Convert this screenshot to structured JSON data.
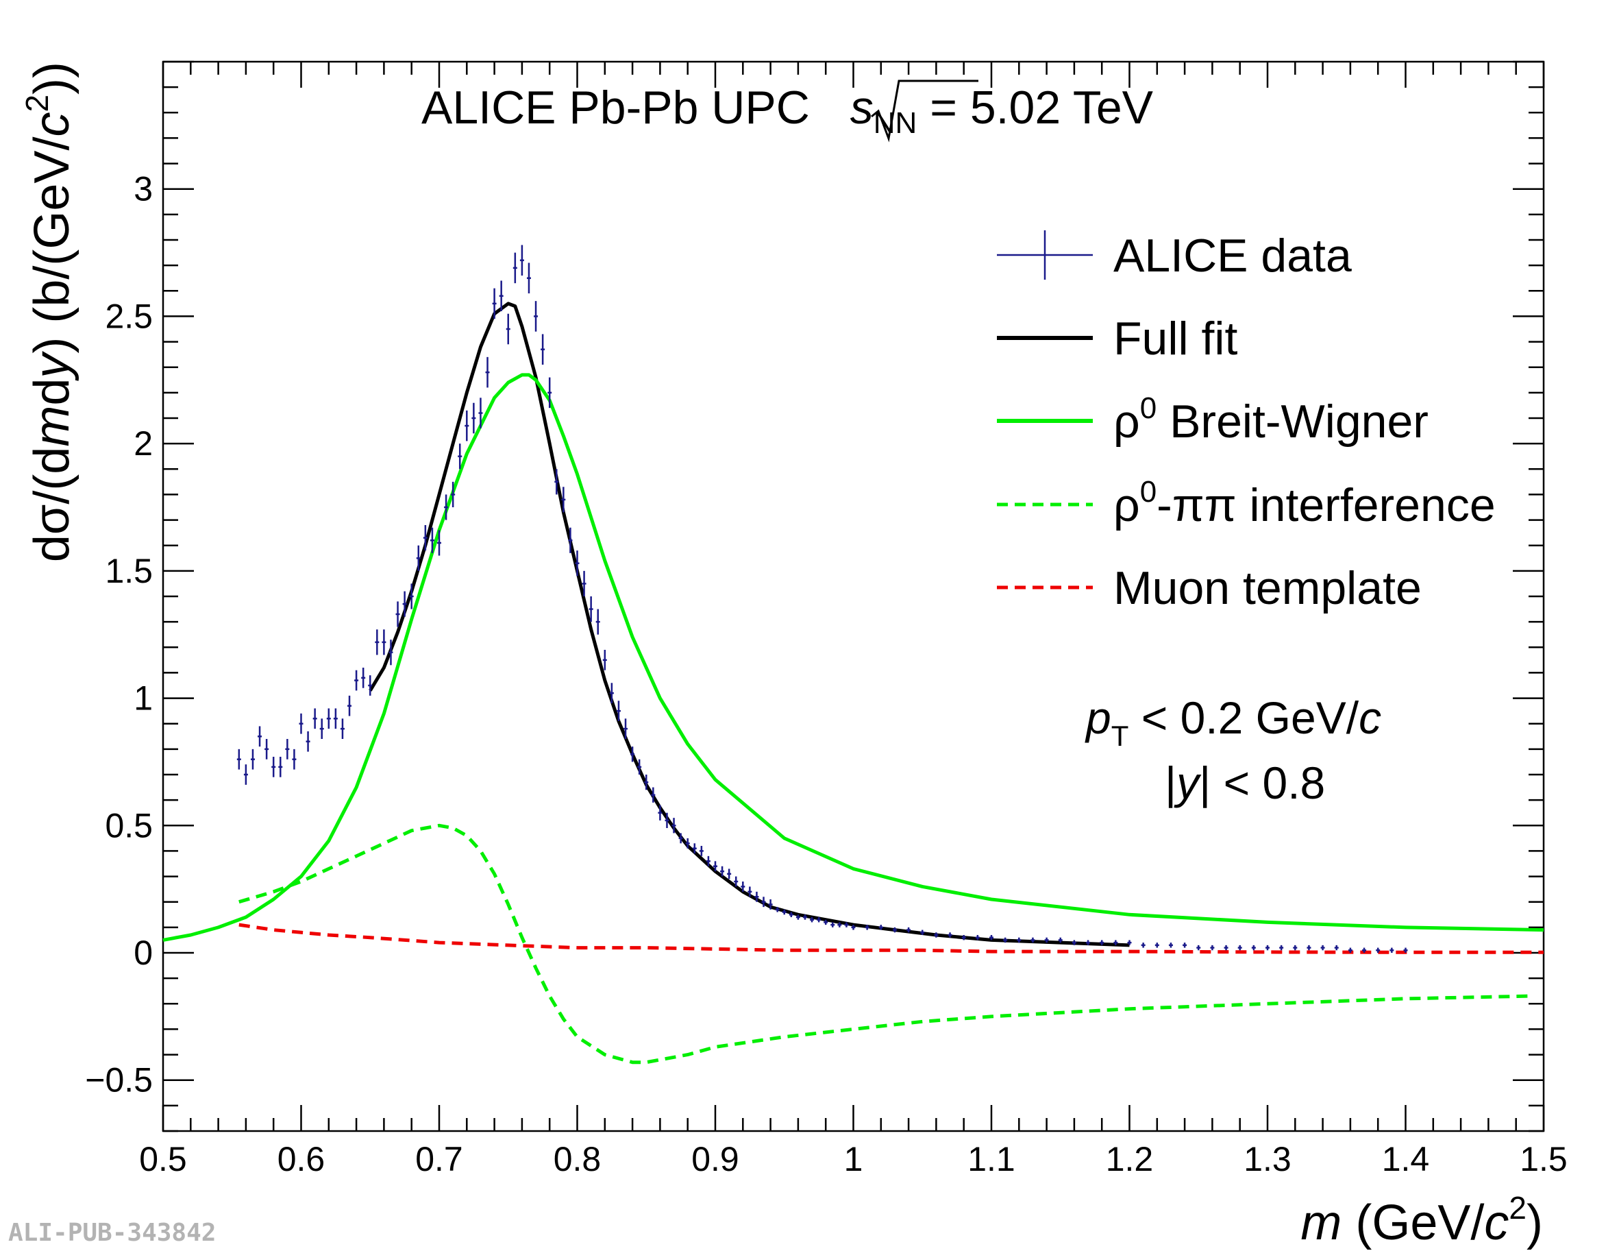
{
  "chart_data": {
    "type": "line",
    "title": {
      "prefix": "ALICE Pb-Pb UPC ",
      "sqrt_var": "s",
      "sqrt_sub": "NN",
      "suffix": " = 5.02 TeV"
    },
    "xlabel": {
      "var": "m",
      "open": " (GeV/",
      "c": "c",
      "pow": "2",
      "close": ")"
    },
    "ylabel": {
      "d_sigma": "dσ/(d",
      "m": "m",
      "d": "d",
      "y": "y",
      "mid": ") (b/(GeV/",
      "c": "c",
      "pow": "2",
      "close": "))"
    },
    "xlim": [
      0.5,
      1.5
    ],
    "ylim": [
      -0.7,
      3.5
    ],
    "xticks": [
      0.5,
      0.6,
      0.7,
      0.8,
      0.9,
      1.0,
      1.1,
      1.2,
      1.3,
      1.4,
      1.5
    ],
    "xtick_labels": [
      "0.5",
      "0.6",
      "0.7",
      "0.8",
      "0.9",
      "1",
      "1.1",
      "1.2",
      "1.3",
      "1.4",
      "1.5"
    ],
    "yticks": [
      -0.5,
      0,
      0.5,
      1,
      1.5,
      2,
      2.5,
      3
    ],
    "ytick_labels": [
      "−0.5",
      "0",
      "0.5",
      "1",
      "1.5",
      "2",
      "2.5",
      "3"
    ],
    "annotations": {
      "pt_var": "p",
      "pt_sub": "T",
      "pt_rest": " < 0.2 GeV/",
      "pt_c": "c",
      "y_open": "|",
      "y_var": "y",
      "y_rest": "| < 0.8"
    },
    "legend": [
      {
        "label": "ALICE data",
        "style": "marker",
        "color": "#1a1a8a"
      },
      {
        "label": "Full fit",
        "style": "solid",
        "color": "#000000"
      },
      {
        "sym": "ρ",
        "sup": "0",
        "rest": " Breit-Wigner",
        "style": "solid",
        "color": "#00ee00"
      },
      {
        "sym": "ρ",
        "sup": "0",
        "rest": "-ππ interference",
        "style": "dashed",
        "color": "#00ee00"
      },
      {
        "label": "Muon template",
        "style": "dashed",
        "color": "#ee0000"
      }
    ],
    "series": [
      {
        "name": "ALICE data",
        "kind": "points",
        "color": "#1a1a8a",
        "x": [
          0.555,
          0.56,
          0.565,
          0.57,
          0.575,
          0.58,
          0.585,
          0.59,
          0.595,
          0.6,
          0.605,
          0.61,
          0.615,
          0.62,
          0.625,
          0.63,
          0.635,
          0.64,
          0.645,
          0.65,
          0.655,
          0.66,
          0.665,
          0.67,
          0.675,
          0.68,
          0.685,
          0.69,
          0.695,
          0.7,
          0.705,
          0.71,
          0.715,
          0.72,
          0.725,
          0.73,
          0.735,
          0.74,
          0.745,
          0.75,
          0.755,
          0.76,
          0.765,
          0.77,
          0.775,
          0.78,
          0.785,
          0.79,
          0.795,
          0.8,
          0.805,
          0.81,
          0.815,
          0.82,
          0.825,
          0.83,
          0.835,
          0.84,
          0.845,
          0.85,
          0.855,
          0.86,
          0.865,
          0.87,
          0.875,
          0.88,
          0.885,
          0.89,
          0.895,
          0.9,
          0.905,
          0.91,
          0.915,
          0.92,
          0.925,
          0.93,
          0.935,
          0.94,
          0.945,
          0.95,
          0.955,
          0.96,
          0.965,
          0.97,
          0.975,
          0.98,
          0.985,
          0.99,
          0.995,
          1.0,
          1.01,
          1.02,
          1.03,
          1.04,
          1.05,
          1.06,
          1.07,
          1.08,
          1.09,
          1.1,
          1.11,
          1.12,
          1.13,
          1.14,
          1.15,
          1.16,
          1.17,
          1.18,
          1.19,
          1.2,
          1.21,
          1.22,
          1.23,
          1.24,
          1.25,
          1.26,
          1.27,
          1.28,
          1.29,
          1.3,
          1.31,
          1.32,
          1.33,
          1.34,
          1.35,
          1.36,
          1.37,
          1.38,
          1.39,
          1.4
        ],
        "y": [
          0.76,
          0.7,
          0.76,
          0.85,
          0.8,
          0.73,
          0.73,
          0.8,
          0.76,
          0.9,
          0.83,
          0.92,
          0.88,
          0.92,
          0.92,
          0.88,
          0.97,
          1.07,
          1.08,
          1.05,
          1.22,
          1.22,
          1.18,
          1.33,
          1.37,
          1.4,
          1.55,
          1.63,
          1.62,
          1.61,
          1.75,
          1.8,
          1.95,
          2.07,
          2.1,
          2.12,
          2.28,
          2.55,
          2.58,
          2.45,
          2.69,
          2.72,
          2.65,
          2.5,
          2.37,
          2.2,
          1.85,
          1.78,
          1.62,
          1.53,
          1.45,
          1.35,
          1.3,
          1.15,
          1.02,
          0.95,
          0.88,
          0.78,
          0.73,
          0.67,
          0.62,
          0.55,
          0.52,
          0.5,
          0.45,
          0.43,
          0.41,
          0.4,
          0.36,
          0.34,
          0.32,
          0.31,
          0.28,
          0.26,
          0.24,
          0.22,
          0.2,
          0.19,
          0.17,
          0.16,
          0.15,
          0.14,
          0.14,
          0.13,
          0.13,
          0.12,
          0.11,
          0.11,
          0.11,
          0.1,
          0.1,
          0.1,
          0.09,
          0.09,
          0.08,
          0.07,
          0.07,
          0.06,
          0.06,
          0.06,
          0.05,
          0.05,
          0.05,
          0.05,
          0.05,
          0.04,
          0.04,
          0.04,
          0.04,
          0.04,
          0.03,
          0.03,
          0.03,
          0.03,
          0.02,
          0.02,
          0.02,
          0.02,
          0.02,
          0.02,
          0.02,
          0.02,
          0.02,
          0.02,
          0.02,
          0.01,
          0.01,
          0.01,
          0.01,
          0.01
        ],
        "err": [
          0.04,
          0.04,
          0.04,
          0.04,
          0.04,
          0.04,
          0.04,
          0.04,
          0.04,
          0.04,
          0.04,
          0.04,
          0.04,
          0.04,
          0.04,
          0.04,
          0.04,
          0.04,
          0.04,
          0.04,
          0.05,
          0.05,
          0.05,
          0.05,
          0.05,
          0.05,
          0.05,
          0.05,
          0.05,
          0.05,
          0.05,
          0.05,
          0.05,
          0.06,
          0.06,
          0.06,
          0.06,
          0.06,
          0.06,
          0.06,
          0.06,
          0.06,
          0.06,
          0.06,
          0.06,
          0.06,
          0.05,
          0.05,
          0.05,
          0.05,
          0.05,
          0.05,
          0.05,
          0.04,
          0.04,
          0.04,
          0.04,
          0.03,
          0.03,
          0.03,
          0.03,
          0.03,
          0.03,
          0.03,
          0.02,
          0.02,
          0.02,
          0.02,
          0.02,
          0.02,
          0.02,
          0.02,
          0.02,
          0.02,
          0.02,
          0.02,
          0.02,
          0.02,
          0.01,
          0.01,
          0.01,
          0.01,
          0.01,
          0.01,
          0.01,
          0.01,
          0.01,
          0.01,
          0.01,
          0.01,
          0.01,
          0.01,
          0.01,
          0.01,
          0.01,
          0.01,
          0.01,
          0.01,
          0.01,
          0.01,
          0.01,
          0.01,
          0.01,
          0.01,
          0.01,
          0.01,
          0.01,
          0.01,
          0.01,
          0.01,
          0.01,
          0.01,
          0.01,
          0.01,
          0.01,
          0.01,
          0.01,
          0.01,
          0.01,
          0.01,
          0.01,
          0.01,
          0.01,
          0.01,
          0.01,
          0.01,
          0.01,
          0.01,
          0.01,
          0.01
        ]
      },
      {
        "name": "Full fit",
        "kind": "line",
        "color": "#000000",
        "dashed": false,
        "x": [
          0.65,
          0.66,
          0.67,
          0.68,
          0.69,
          0.7,
          0.71,
          0.72,
          0.73,
          0.74,
          0.75,
          0.755,
          0.76,
          0.77,
          0.78,
          0.79,
          0.8,
          0.81,
          0.82,
          0.83,
          0.84,
          0.85,
          0.86,
          0.87,
          0.88,
          0.9,
          0.92,
          0.94,
          0.96,
          0.98,
          1.0,
          1.03,
          1.06,
          1.1,
          1.15,
          1.2
        ],
        "y": [
          1.03,
          1.12,
          1.26,
          1.42,
          1.6,
          1.8,
          2.0,
          2.2,
          2.38,
          2.51,
          2.55,
          2.54,
          2.46,
          2.26,
          2.0,
          1.73,
          1.5,
          1.27,
          1.07,
          0.91,
          0.78,
          0.66,
          0.57,
          0.49,
          0.42,
          0.32,
          0.24,
          0.18,
          0.15,
          0.13,
          0.11,
          0.09,
          0.07,
          0.05,
          0.04,
          0.03
        ]
      },
      {
        "name": "rho0 Breit-Wigner",
        "kind": "line",
        "color": "#00ee00",
        "dashed": false,
        "x": [
          0.5,
          0.52,
          0.54,
          0.56,
          0.58,
          0.6,
          0.62,
          0.64,
          0.66,
          0.68,
          0.7,
          0.72,
          0.74,
          0.75,
          0.76,
          0.765,
          0.77,
          0.78,
          0.79,
          0.8,
          0.82,
          0.84,
          0.86,
          0.88,
          0.9,
          0.95,
          1.0,
          1.05,
          1.1,
          1.2,
          1.3,
          1.4,
          1.5
        ],
        "y": [
          0.05,
          0.07,
          0.1,
          0.14,
          0.21,
          0.3,
          0.44,
          0.65,
          0.94,
          1.31,
          1.66,
          1.96,
          2.18,
          2.24,
          2.27,
          2.27,
          2.25,
          2.17,
          2.03,
          1.88,
          1.54,
          1.24,
          1.0,
          0.82,
          0.68,
          0.45,
          0.33,
          0.26,
          0.21,
          0.15,
          0.12,
          0.1,
          0.09
        ]
      },
      {
        "name": "rho0-pipi interference",
        "kind": "line",
        "color": "#00ee00",
        "dashed": true,
        "x": [
          0.555,
          0.58,
          0.6,
          0.62,
          0.64,
          0.66,
          0.68,
          0.69,
          0.7,
          0.71,
          0.72,
          0.73,
          0.74,
          0.75,
          0.76,
          0.77,
          0.78,
          0.79,
          0.8,
          0.82,
          0.84,
          0.85,
          0.86,
          0.88,
          0.9,
          0.95,
          1.0,
          1.05,
          1.1,
          1.2,
          1.3,
          1.4,
          1.49
        ],
        "y": [
          0.2,
          0.24,
          0.28,
          0.33,
          0.38,
          0.43,
          0.48,
          0.49,
          0.5,
          0.49,
          0.46,
          0.4,
          0.31,
          0.19,
          0.06,
          -0.06,
          -0.17,
          -0.26,
          -0.33,
          -0.4,
          -0.43,
          -0.43,
          -0.42,
          -0.4,
          -0.37,
          -0.33,
          -0.3,
          -0.27,
          -0.25,
          -0.22,
          -0.2,
          -0.18,
          -0.17
        ]
      },
      {
        "name": "Muon template",
        "kind": "line",
        "color": "#ee0000",
        "dashed": true,
        "x": [
          0.555,
          0.58,
          0.6,
          0.62,
          0.65,
          0.7,
          0.75,
          0.8,
          0.85,
          0.9,
          0.95,
          1.0,
          1.05,
          1.1,
          1.2,
          1.3,
          1.4,
          1.5
        ],
        "y": [
          0.11,
          0.09,
          0.08,
          0.07,
          0.06,
          0.04,
          0.03,
          0.02,
          0.02,
          0.015,
          0.01,
          0.01,
          0.01,
          0.005,
          0.005,
          0.003,
          0.002,
          0.002
        ]
      }
    ]
  },
  "watermark": "ALI-PUB-343842"
}
